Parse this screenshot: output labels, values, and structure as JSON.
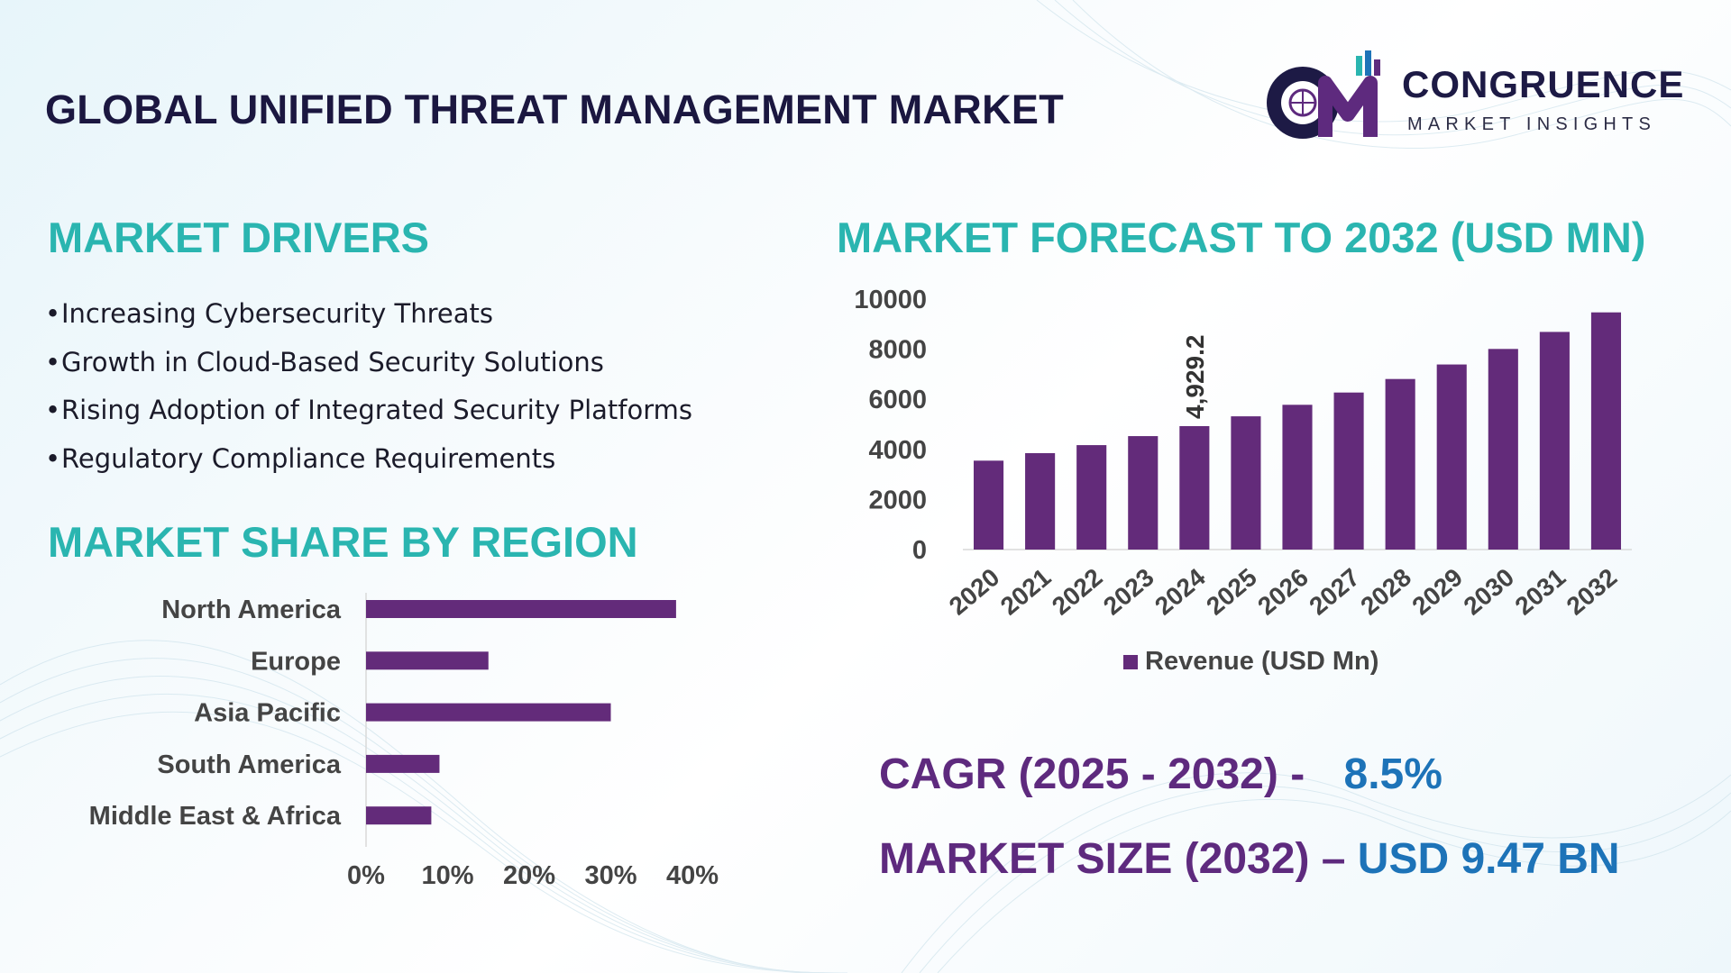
{
  "header": {
    "title": "GLOBAL UNIFIED THREAT MANAGEMENT MARKET",
    "logo_word": "CONGRUENCE",
    "logo_sub": "MARKET INSIGHTS"
  },
  "drivers": {
    "title": "MARKET DRIVERS",
    "items": [
      "Increasing Cybersecurity Threats",
      "Growth in Cloud-Based Security Solutions",
      "Rising Adoption of Integrated Security Platforms",
      "Regulatory Compliance Requirements"
    ]
  },
  "regions": {
    "title": "MARKET SHARE BY REGION"
  },
  "forecast": {
    "title": "MARKET FORECAST TO 2032 (USD MN)"
  },
  "kpis": {
    "cagr_label": "CAGR (2025 - 2032) -",
    "cagr_value": "8.5%",
    "size_label": "MARKET SIZE (2032) –",
    "size_value": "USD 9.47 BN"
  },
  "colors": {
    "bar": "#632b7a",
    "section_title": "#2ab5b0",
    "title": "#1b1740",
    "kpi_label": "#5e2a7e",
    "kpi_value": "#1d73b8"
  },
  "chart_data": [
    {
      "type": "bar",
      "orientation": "vertical",
      "categories": [
        "2020",
        "2021",
        "2022",
        "2023",
        "2024",
        "2025",
        "2026",
        "2027",
        "2028",
        "2029",
        "2030",
        "2031",
        "2032"
      ],
      "series": [
        {
          "name": "Revenue (USD Mn)",
          "values": [
            3550,
            3850,
            4170,
            4530,
            4929.2,
            5320,
            5780,
            6270,
            6810,
            7390,
            8010,
            8690,
            9470
          ]
        }
      ],
      "data_labels": [
        {
          "category": "2024",
          "text": "4,929.2"
        }
      ],
      "yticks": [
        "0",
        "2000",
        "4000",
        "6000",
        "8000",
        "10000"
      ],
      "ylim": [
        0,
        10000
      ],
      "legend": "bottom",
      "grid": false
    },
    {
      "type": "bar",
      "orientation": "horizontal",
      "categories": [
        "North America",
        "Europe",
        "Asia Pacific",
        "South America",
        "Middle East & Africa"
      ],
      "values": [
        38,
        15,
        30,
        9,
        8
      ],
      "xticks": [
        "0%",
        "10%",
        "20%",
        "30%",
        "40%"
      ],
      "xlim": [
        0,
        40
      ],
      "grid": false
    }
  ]
}
